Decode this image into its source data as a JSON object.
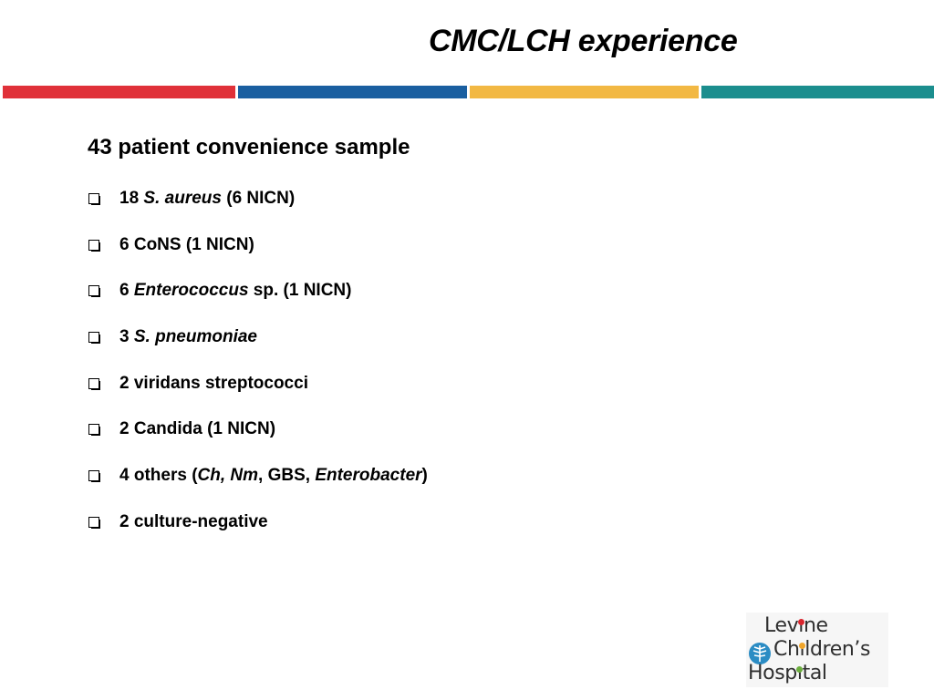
{
  "slide": {
    "title": "CMC/LCH experience",
    "color_bar": [
      "#e03139",
      "#1a5fa0",
      "#f2b843",
      "#1b8e8e"
    ],
    "heading": "43 patient convenience sample",
    "bullets": [
      {
        "runs": [
          {
            "t": "18 ",
            "i": false
          },
          {
            "t": "S. aureus",
            "i": true
          },
          {
            "t": " (6 NICN)",
            "i": false
          }
        ]
      },
      {
        "runs": [
          {
            "t": "6 CoNS (1 NICN)",
            "i": false
          }
        ]
      },
      {
        "runs": [
          {
            "t": "6 ",
            "i": false
          },
          {
            "t": "Enterococcus",
            "i": true
          },
          {
            "t": " sp. (1 NICN)",
            "i": false
          }
        ]
      },
      {
        "runs": [
          {
            "t": "3 ",
            "i": false
          },
          {
            "t": "S. pneumoniae",
            "i": true
          }
        ]
      },
      {
        "runs": [
          {
            "t": "2 viridans streptococci",
            "i": false
          }
        ]
      },
      {
        "runs": [
          {
            "t": "2 Candida (1 NICN)",
            "i": false
          }
        ]
      },
      {
        "runs": [
          {
            "t": "4 others (",
            "i": false
          },
          {
            "t": "Ch, Nm",
            "i": true
          },
          {
            "t": ", GBS, ",
            "i": false
          },
          {
            "t": "Enterobacter",
            "i": true
          },
          {
            "t": ")",
            "i": false
          }
        ]
      },
      {
        "runs": [
          {
            "t": "2 culture-negative",
            "i": false
          }
        ]
      }
    ]
  },
  "logo": {
    "line1": "Levine",
    "line2": "Children’s",
    "line3": "Hospital",
    "icon": "tree-leaf-icon",
    "colors": {
      "i_red": "#d9262e",
      "i_orange": "#f0a52a",
      "i_green": "#6cae3e",
      "leaf": "#2b8cc4"
    }
  }
}
